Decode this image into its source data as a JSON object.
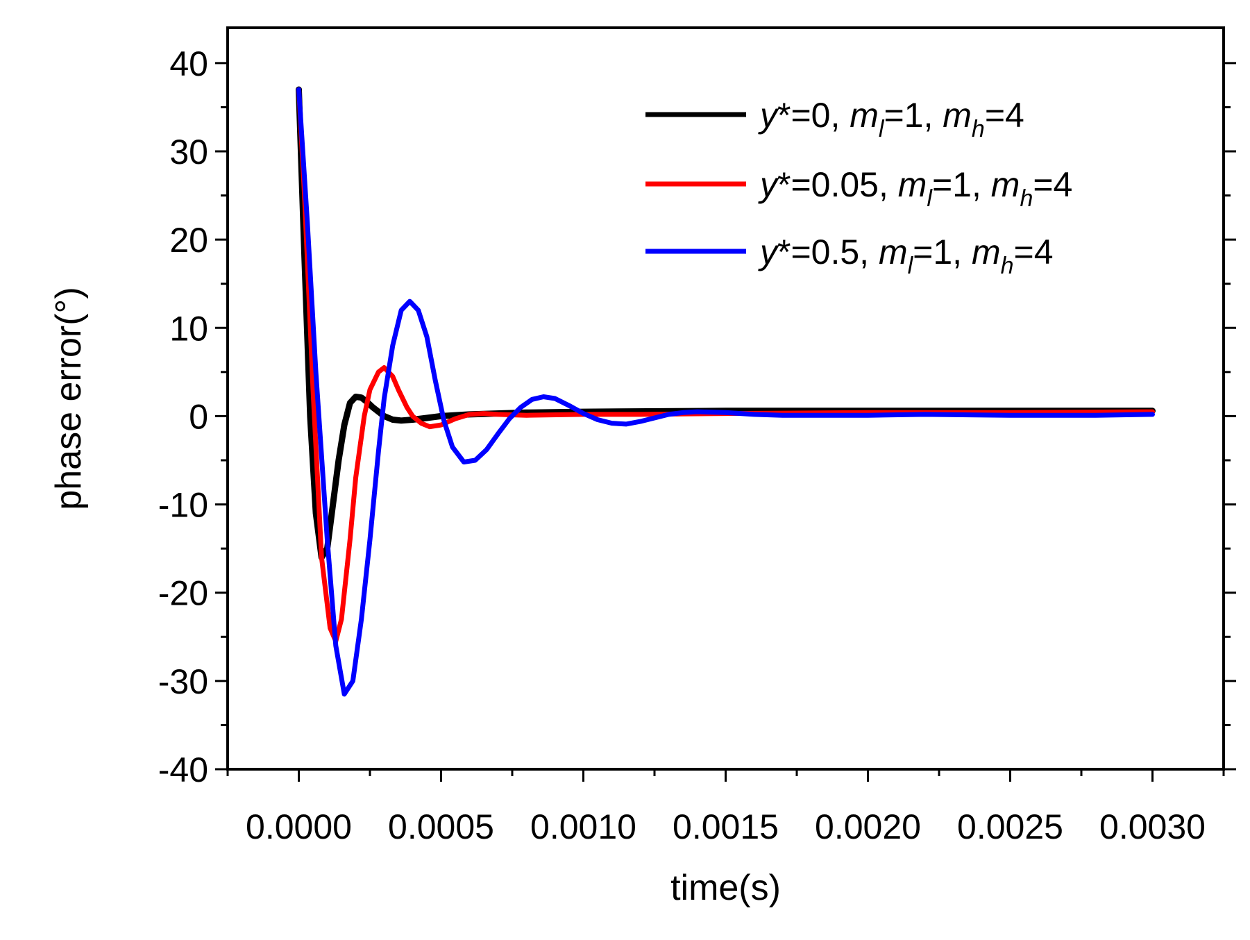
{
  "chart_data": {
    "type": "line",
    "title": "",
    "xlabel": "time(s)",
    "ylabel": "phase error(°)",
    "xlim": [
      -0.00025,
      0.00325
    ],
    "ylim": [
      -40,
      44
    ],
    "x_ticks": [
      0.0,
      0.0005,
      0.001,
      0.0015,
      0.002,
      0.0025,
      0.003
    ],
    "x_tick_labels": [
      "0.0000",
      "0.0005",
      "0.0010",
      "0.0015",
      "0.0020",
      "0.0025",
      "0.0030"
    ],
    "y_ticks": [
      -40,
      -30,
      -20,
      -10,
      0,
      10,
      20,
      30,
      40
    ],
    "y_tick_labels": [
      "-40",
      "-30",
      "-20",
      "-10",
      "0",
      "10",
      "20",
      "30",
      "40"
    ],
    "grid": false,
    "legend_position": "top-right",
    "series": [
      {
        "name": "y*=0, ml=1, mh=4",
        "legend": {
          "prefix": "y*=0, ",
          "m1": "m",
          "s1": "l",
          "mid": "=1, ",
          "m2": "m",
          "s2": "h",
          "suffix": "=4"
        },
        "color": "#000000",
        "x": [
          0.0,
          2e-05,
          4e-05,
          6e-05,
          8e-05,
          0.0001,
          0.00012,
          0.00014,
          0.00016,
          0.00018,
          0.0002,
          0.00022,
          0.00024,
          0.00026,
          0.00028,
          0.0003,
          0.00033,
          0.00036,
          0.0004,
          0.00045,
          0.0005,
          0.0006,
          0.0008,
          0.001,
          0.0015,
          0.002,
          0.0025,
          0.003
        ],
        "y": [
          37,
          18,
          0,
          -11,
          -16,
          -15,
          -10,
          -5,
          -1,
          1.5,
          2.2,
          2.1,
          1.6,
          1.0,
          0.5,
          0.0,
          -0.4,
          -0.5,
          -0.4,
          -0.2,
          0.0,
          0.2,
          0.4,
          0.5,
          0.6,
          0.6,
          0.6,
          0.6
        ]
      },
      {
        "name": "y*=0.05, ml=1, mh=4",
        "legend": {
          "prefix": "y*=0.05, ",
          "m1": "m",
          "s1": "l",
          "mid": "=1, ",
          "m2": "m",
          "s2": "h",
          "suffix": "=4"
        },
        "color": "#ff0000",
        "x": [
          0.0,
          2e-05,
          5e-05,
          8e-05,
          0.00011,
          0.00013,
          0.00015,
          0.00018,
          0.0002,
          0.00023,
          0.00025,
          0.00028,
          0.0003,
          0.00033,
          0.00035,
          0.00038,
          0.0004,
          0.00043,
          0.00046,
          0.0005,
          0.00055,
          0.0006,
          0.00065,
          0.0007,
          0.0008,
          0.001,
          0.0012,
          0.0015,
          0.002,
          0.0025,
          0.003
        ],
        "y": [
          37,
          25,
          3,
          -16,
          -24,
          -25.5,
          -23,
          -14,
          -7,
          0,
          3,
          5,
          5.5,
          4.5,
          3,
          1,
          0,
          -0.8,
          -1.2,
          -1.0,
          -0.3,
          0.2,
          0.3,
          0.2,
          0.1,
          0.2,
          0.2,
          0.3,
          0.4,
          0.4,
          0.5
        ]
      },
      {
        "name": "y*=0.5, ml=1, mh=4",
        "legend": {
          "prefix": "y*=0.5, ",
          "m1": "m",
          "s1": "l",
          "mid": "=1, ",
          "m2": "m",
          "s2": "h",
          "suffix": "=4"
        },
        "color": "#0000ff",
        "x": [
          0.0,
          3e-05,
          6e-05,
          0.0001,
          0.00013,
          0.00016,
          0.00019,
          0.00022,
          0.00025,
          0.00028,
          0.0003,
          0.00033,
          0.00036,
          0.00039,
          0.00042,
          0.00045,
          0.00048,
          0.00051,
          0.00054,
          0.00058,
          0.00062,
          0.00066,
          0.0007,
          0.00074,
          0.00078,
          0.00082,
          0.00086,
          0.0009,
          0.00095,
          0.001,
          0.00105,
          0.0011,
          0.00115,
          0.0012,
          0.00125,
          0.0013,
          0.00135,
          0.0014,
          0.0015,
          0.0016,
          0.0017,
          0.0018,
          0.002,
          0.0022,
          0.0025,
          0.0028,
          0.003
        ],
        "y": [
          37,
          22,
          5,
          -14,
          -26,
          -31.5,
          -30,
          -23,
          -14,
          -4,
          2,
          8,
          12,
          13,
          12,
          9,
          4,
          -0.5,
          -3.5,
          -5.2,
          -5.0,
          -3.8,
          -2.0,
          -0.3,
          1.0,
          1.9,
          2.2,
          2.0,
          1.2,
          0.3,
          -0.4,
          -0.8,
          -0.9,
          -0.6,
          -0.2,
          0.2,
          0.4,
          0.5,
          0.4,
          0.2,
          0.1,
          0.1,
          0.1,
          0.2,
          0.1,
          0.1,
          0.2
        ]
      }
    ]
  }
}
